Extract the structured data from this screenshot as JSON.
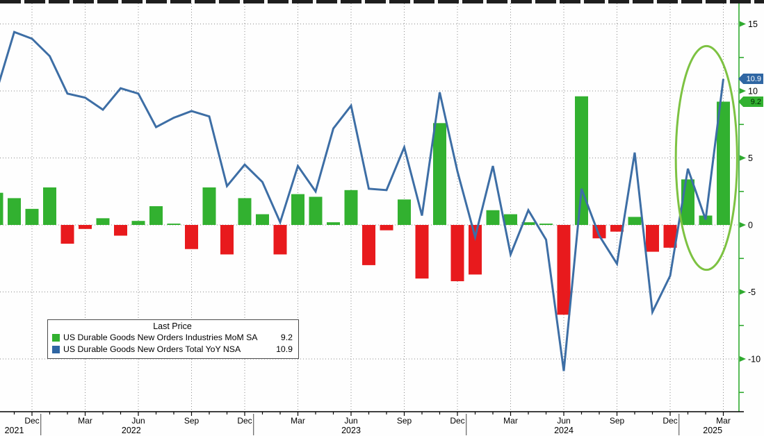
{
  "legend": {
    "title": "Last Price",
    "items": [
      {
        "label": "US Durable Goods New Orders Industries MoM SA",
        "value": "9.2",
        "swatch_color": "#32b130"
      },
      {
        "label": "US Durable Goods New Orders Total YoY NSA",
        "value": "10.9",
        "swatch_color": "#2f66a3"
      }
    ]
  },
  "price_tags": {
    "yoy": {
      "text": "10.9",
      "value": 10.9,
      "bg_color": "#2f66a3",
      "text_color": "#ffffff"
    },
    "mom": {
      "text": "9.2",
      "value": 9.2,
      "bg_color": "#32b130",
      "text_color": "#002200"
    }
  },
  "colors": {
    "bar_positive": "#32b130",
    "bar_negative": "#e81a1d",
    "line": "#3d6ea5",
    "axis_green": "#2faa2f",
    "gridline": "#8a8a8a",
    "annotation_ellipse": "#7dc242",
    "bottom_axis": "#000000"
  },
  "chart_data": {
    "type": "combo",
    "categories": [
      "Oct 2021",
      "Nov 2021",
      "Dec 2021",
      "Jan 2022",
      "Feb 2022",
      "Mar 2022",
      "Apr 2022",
      "May 2022",
      "Jun 2022",
      "Jul 2022",
      "Aug 2022",
      "Sep 2022",
      "Oct 2022",
      "Nov 2022",
      "Dec 2022",
      "Jan 2023",
      "Feb 2023",
      "Mar 2023",
      "Apr 2023",
      "May 2023",
      "Jun 2023",
      "Jul 2023",
      "Aug 2023",
      "Sep 2023",
      "Oct 2023",
      "Nov 2023",
      "Dec 2023",
      "Jan 2024",
      "Feb 2024",
      "Mar 2024",
      "Apr 2024",
      "May 2024",
      "Jun 2024",
      "Jul 2024",
      "Aug 2024",
      "Sep 2024",
      "Oct 2024",
      "Nov 2024",
      "Dec 2024",
      "Jan 2025",
      "Feb 2025",
      "Mar 2025"
    ],
    "series": [
      {
        "name": "US Durable Goods New Orders Industries MoM SA",
        "type": "bar",
        "last": 9.2,
        "values": [
          2.4,
          2.0,
          1.2,
          2.8,
          -1.4,
          -0.3,
          0.5,
          -0.8,
          0.3,
          1.4,
          0.1,
          -1.8,
          2.8,
          -2.2,
          2.0,
          0.8,
          -2.2,
          2.3,
          2.1,
          0.2,
          2.6,
          -3.0,
          -0.4,
          1.9,
          -4.0,
          7.6,
          -4.2,
          -3.7,
          1.1,
          0.8,
          0.2,
          0.1,
          -6.7,
          9.6,
          -1.0,
          -0.5,
          0.6,
          -2.0,
          -1.7,
          3.4,
          0.7,
          9.2
        ]
      },
      {
        "name": "US Durable Goods New Orders Total YoY NSA",
        "type": "line",
        "last": 10.9,
        "values": [
          10.0,
          14.4,
          13.9,
          12.6,
          9.8,
          9.5,
          8.6,
          10.2,
          9.8,
          7.3,
          8.0,
          8.5,
          8.1,
          2.9,
          4.5,
          3.2,
          0.2,
          4.4,
          2.5,
          7.2,
          8.9,
          2.7,
          2.6,
          5.8,
          0.7,
          9.9,
          4.0,
          -0.9,
          4.4,
          -2.2,
          1.1,
          -1.1,
          -10.9,
          2.7,
          -0.8,
          -2.9,
          5.4,
          -6.5,
          -3.8,
          4.2,
          0.4,
          10.9
        ]
      }
    ],
    "y_axis": {
      "side": "right",
      "tick_values": [
        15,
        10,
        5,
        0,
        -5,
        -10
      ],
      "minor_tick_values": [
        12.5,
        7.5,
        2.5,
        -2.5,
        -7.5,
        -12.5
      ],
      "range": [
        -13.9,
        16.5
      ],
      "grid": "dotted"
    },
    "x_axis": {
      "tick_labels": [
        {
          "index": 2,
          "label": "Dec"
        },
        {
          "index": 5,
          "label": "Mar"
        },
        {
          "index": 8,
          "label": "Jun"
        },
        {
          "index": 11,
          "label": "Sep"
        },
        {
          "index": 14,
          "label": "Dec"
        },
        {
          "index": 17,
          "label": "Mar"
        },
        {
          "index": 20,
          "label": "Jun"
        },
        {
          "index": 23,
          "label": "Sep"
        },
        {
          "index": 26,
          "label": "Dec"
        },
        {
          "index": 29,
          "label": "Mar"
        },
        {
          "index": 32,
          "label": "Jun"
        },
        {
          "index": 35,
          "label": "Sep"
        },
        {
          "index": 38,
          "label": "Dec"
        },
        {
          "index": 41,
          "label": "Mar"
        }
      ],
      "year_labels": [
        {
          "index": 1.0,
          "label": "2021"
        },
        {
          "index": 7.6,
          "label": "2022"
        },
        {
          "index": 20,
          "label": "2023"
        },
        {
          "index": 32,
          "label": "2024"
        },
        {
          "index": 40.4,
          "label": "2025"
        }
      ],
      "year_divider_indices": [
        2.5,
        14.5,
        26.5,
        38.5
      ]
    },
    "annotation": {
      "shape": "ellipse",
      "highlights": "Jan 2025 - Mar 2025 rebound",
      "center_index": 40.05,
      "center_value": 5.0,
      "rx_months": 1.73,
      "ry_units": 8.35,
      "color": "#7dc242"
    }
  }
}
